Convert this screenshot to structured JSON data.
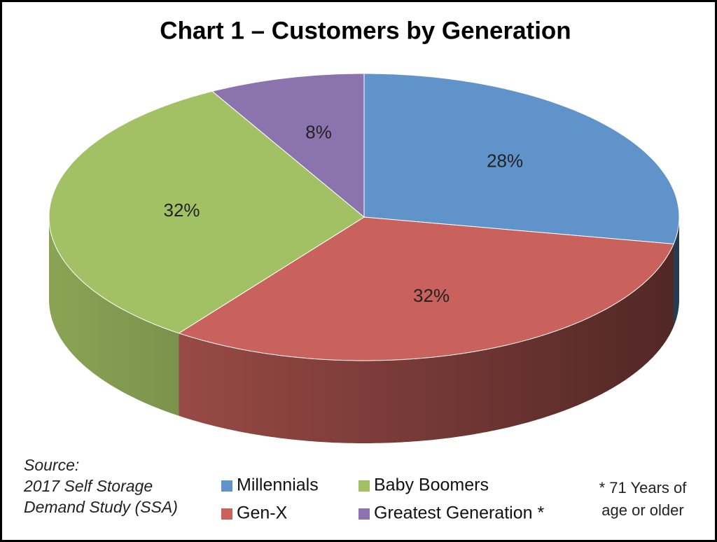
{
  "chart_data": {
    "type": "pie",
    "title": "Chart 1 – Customers by Generation",
    "categories": [
      "Millennials",
      "Gen-X",
      "Baby Boomers",
      "Greatest Generation *"
    ],
    "values": [
      28,
      32,
      32,
      8
    ],
    "value_labels": [
      "28%",
      "32%",
      "32%",
      "8%"
    ],
    "colors": [
      "#5f93c9",
      "#c9625c",
      "#a2c164",
      "#8b74ad"
    ],
    "legend": "bottom",
    "source": [
      "Source:",
      "2017 Self Storage",
      "Demand Study (SSA)"
    ],
    "footnote": [
      "* 71 Years of",
      "age or older"
    ]
  }
}
